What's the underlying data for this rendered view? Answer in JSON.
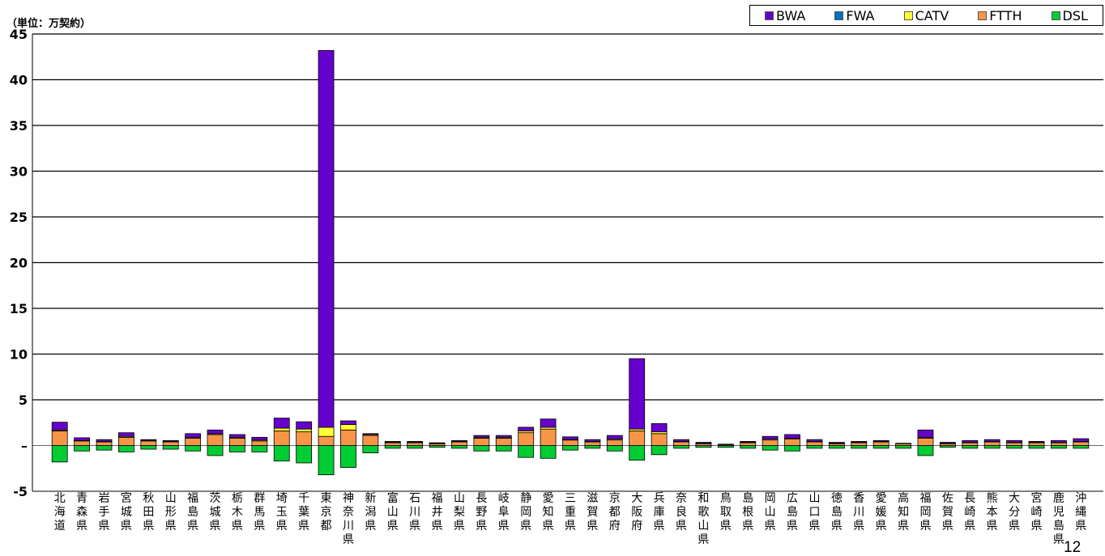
{
  "unit_label": "（単位：万契約）",
  "page_number": "12",
  "legend": [
    {
      "name": "BWA",
      "color": "#6600CC"
    },
    {
      "name": "FWA",
      "color": "#0070C0"
    },
    {
      "name": "CATV",
      "color": "#FFFF33"
    },
    {
      "name": "FTTH",
      "color": "#F79646"
    },
    {
      "name": "DSL",
      "color": "#00CC33"
    }
  ],
  "chart_data": {
    "type": "bar",
    "title": "",
    "xlabel": "",
    "ylabel": "（単位：万契約）",
    "ylim": [
      -5,
      45
    ],
    "yticks": [
      "-5",
      "–",
      "5",
      "10",
      "15",
      "20",
      "25",
      "30",
      "35",
      "40",
      "45"
    ],
    "grid": true,
    "legend_position": "top-right",
    "categories": [
      "北海道",
      "青森県",
      "岩手県",
      "宮城県",
      "秋田県",
      "山形県",
      "福島県",
      "茨城県",
      "栃木県",
      "群馬県",
      "埼玉県",
      "千葉県",
      "東京都",
      "神奈川県",
      "新潟県",
      "富山県",
      "石川県",
      "福井県",
      "山梨県",
      "長野県",
      "岐阜県",
      "静岡県",
      "愛知県",
      "三重県",
      "滋賀県",
      "京都府",
      "大阪府",
      "兵庫県",
      "奈良県",
      "和歌山県",
      "鳥取県",
      "島根県",
      "岡山県",
      "広島県",
      "山口県",
      "徳島県",
      "香川県",
      "愛媛県",
      "高知県",
      "福岡県",
      "佐賀県",
      "長崎県",
      "熊本県",
      "大分県",
      "宮崎県",
      "鹿児島県",
      "沖縄県"
    ],
    "series": [
      {
        "name": "BWA",
        "color": "#6600CC",
        "values": [
          0.85,
          0.3,
          0.2,
          0.4,
          0.1,
          0.1,
          0.4,
          0.4,
          0.3,
          0.3,
          1.1,
          0.8,
          41.2,
          0.4,
          0.1,
          0.1,
          0.1,
          0.05,
          0.1,
          0.2,
          0.2,
          0.4,
          0.9,
          0.3,
          0.2,
          0.4,
          7.7,
          0.9,
          0.2,
          0.1,
          0.05,
          0.1,
          0.3,
          0.4,
          0.2,
          0.1,
          0.1,
          0.1,
          0.05,
          0.8,
          0.1,
          0.2,
          0.2,
          0.2,
          0.1,
          0.2,
          0.3
        ]
      },
      {
        "name": "FWA",
        "color": "#0070C0",
        "values": [
          0,
          0,
          0,
          0,
          0,
          0,
          0,
          0,
          0,
          0,
          0,
          0,
          0,
          0,
          0,
          0,
          0,
          0,
          0,
          0,
          0,
          0,
          0,
          0,
          0,
          0,
          0,
          0,
          0,
          0,
          0,
          0,
          0,
          0,
          0,
          0,
          0,
          0,
          0,
          0,
          0,
          0,
          0,
          0,
          0,
          0,
          0
        ]
      },
      {
        "name": "CATV",
        "color": "#FFFF33",
        "values": [
          0.1,
          0.05,
          0.05,
          0.1,
          0.05,
          0.05,
          0.1,
          0.1,
          0.1,
          0.1,
          0.3,
          0.3,
          1.0,
          0.6,
          0.1,
          0.05,
          0.05,
          0.05,
          0.05,
          0.1,
          0.1,
          0.2,
          0.2,
          0.05,
          0.05,
          0.1,
          0.2,
          0.2,
          0.05,
          0.05,
          0.0,
          0.05,
          0.1,
          0.1,
          0.05,
          0.05,
          0.05,
          0.05,
          0.0,
          0.1,
          0.05,
          0.05,
          0.05,
          0.05,
          0.05,
          0.05,
          0.05
        ]
      },
      {
        "name": "FTTH",
        "color": "#F79646",
        "values": [
          1.6,
          0.5,
          0.4,
          0.9,
          0.5,
          0.4,
          0.8,
          1.2,
          0.8,
          0.5,
          1.6,
          1.5,
          1.0,
          1.7,
          1.1,
          0.3,
          0.3,
          0.2,
          0.4,
          0.8,
          0.8,
          1.4,
          1.8,
          0.6,
          0.4,
          0.6,
          1.6,
          1.3,
          0.4,
          0.2,
          0.1,
          0.3,
          0.6,
          0.7,
          0.4,
          0.2,
          0.3,
          0.4,
          0.2,
          0.8,
          0.2,
          0.3,
          0.4,
          0.3,
          0.3,
          0.3,
          0.4
        ]
      },
      {
        "name": "DSL",
        "color": "#00CC33",
        "values": [
          -1.8,
          -0.6,
          -0.5,
          -0.7,
          -0.4,
          -0.4,
          -0.6,
          -1.1,
          -0.7,
          -0.7,
          -1.7,
          -1.9,
          -3.2,
          -2.4,
          -0.8,
          -0.3,
          -0.3,
          -0.2,
          -0.3,
          -0.6,
          -0.6,
          -1.3,
          -1.4,
          -0.5,
          -0.3,
          -0.6,
          -1.6,
          -1.0,
          -0.3,
          -0.2,
          -0.2,
          -0.3,
          -0.5,
          -0.6,
          -0.3,
          -0.3,
          -0.3,
          -0.3,
          -0.3,
          -1.1,
          -0.2,
          -0.3,
          -0.3,
          -0.3,
          -0.3,
          -0.3,
          -0.3
        ]
      }
    ]
  }
}
